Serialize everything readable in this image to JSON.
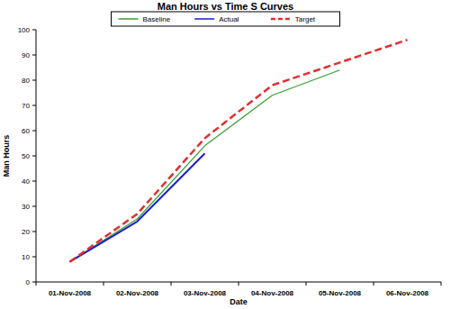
{
  "chart_data": {
    "type": "line",
    "title": "Man Hours vs Time S Curves",
    "x_label": "Date",
    "y_label": "Man Hours",
    "categories": [
      "01-Nov-2008",
      "02-Nov-2008",
      "03-Nov-2008",
      "04-Nov-2008",
      "05-Nov-2008",
      "06-Nov-2008"
    ],
    "series": [
      {
        "name": "Baseline",
        "color": "#33a02c",
        "line_style": "solid",
        "values": [
          8,
          25,
          54,
          74,
          84,
          null
        ]
      },
      {
        "name": "Actual",
        "color": "#1a1fcc",
        "line_style": "solid",
        "values": [
          8,
          24,
          51,
          null,
          null,
          null
        ]
      },
      {
        "name": "Target",
        "color": "#e03030",
        "line_style": "dashed",
        "values": [
          8,
          27,
          57,
          78,
          87,
          96
        ]
      }
    ],
    "ylim": [
      0,
      100
    ],
    "yticks": [
      0,
      10,
      20,
      30,
      40,
      50,
      60,
      70,
      80,
      90,
      100
    ],
    "grid": false,
    "legend": "top"
  }
}
